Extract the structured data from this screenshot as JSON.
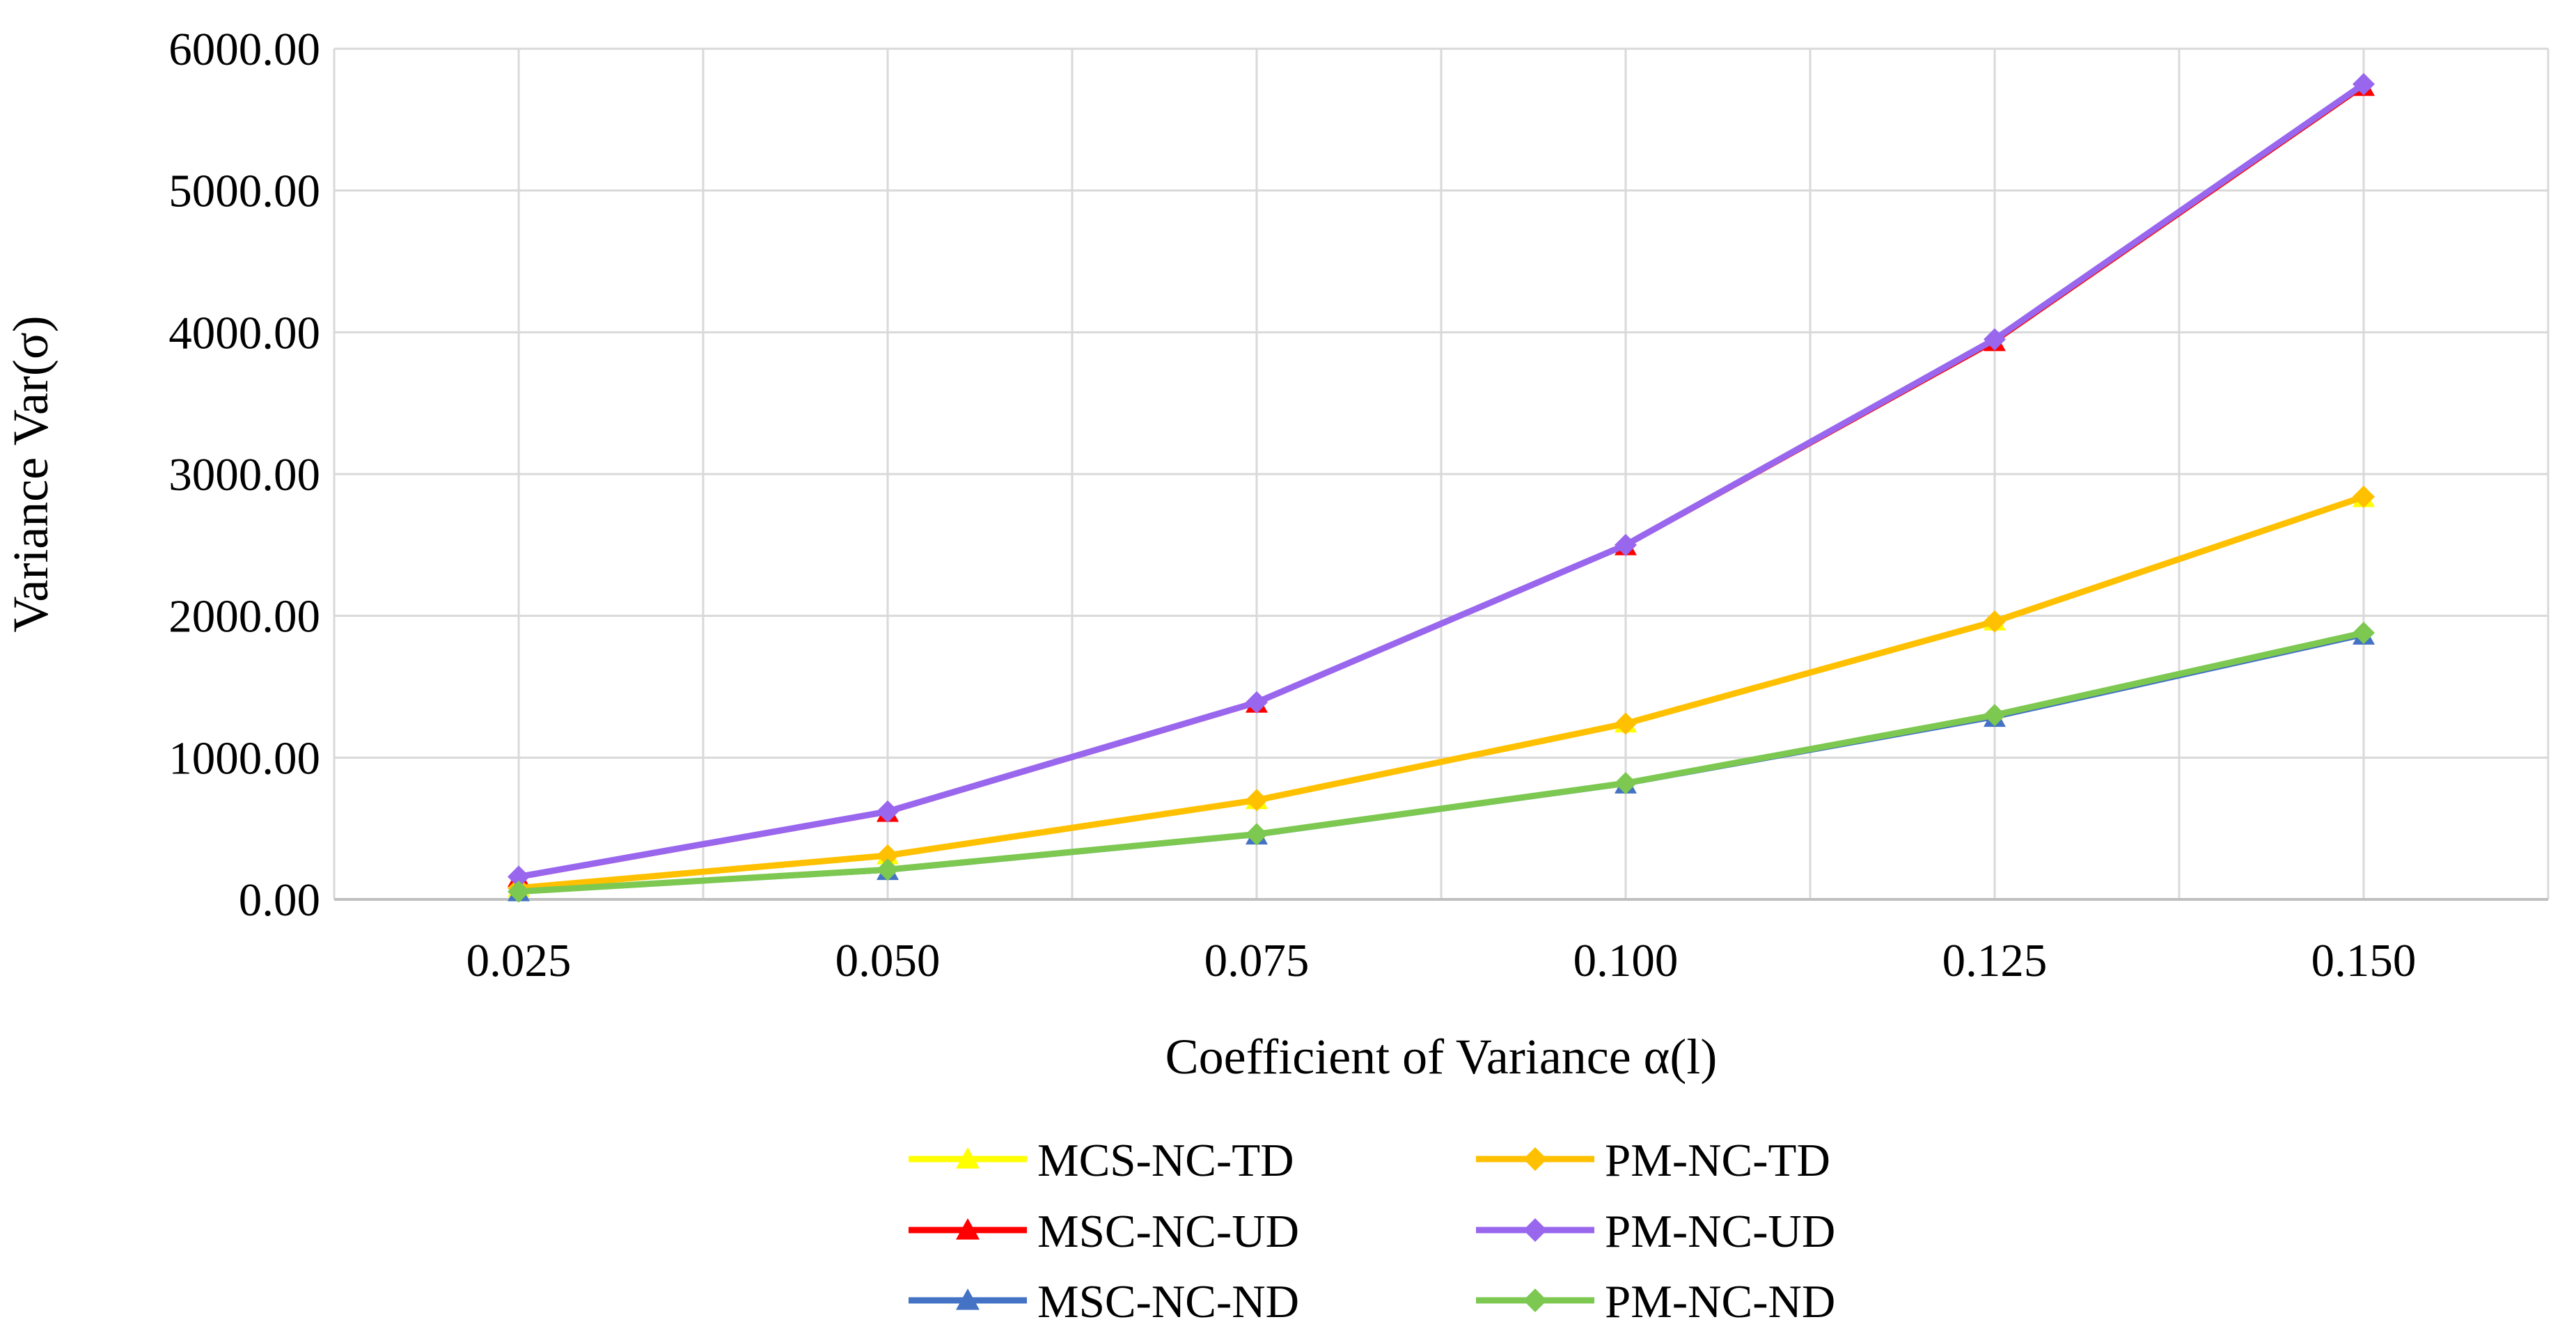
{
  "chart_data": {
    "type": "line",
    "title": "",
    "xlabel": "Coefficient of Variance α(l)",
    "ylabel": "Variance Var(σ)",
    "categories": [
      "0.025",
      "0.050",
      "0.075",
      "0.100",
      "0.125",
      "0.150"
    ],
    "x_minor_ticks": true,
    "ylim": [
      0,
      6000
    ],
    "yticks": [
      0,
      1000,
      2000,
      3000,
      4000,
      5000,
      6000
    ],
    "ytick_labels": [
      "0.00",
      "1000.00",
      "2000.00",
      "3000.00",
      "4000.00",
      "5000.00",
      "6000.00"
    ],
    "grid": true,
    "legend_position": "bottom",
    "series": [
      {
        "name": "MCS-NC-TD",
        "color": "#ffff00",
        "marker": "triangle",
        "values": [
          80,
          310,
          700,
          1240,
          1960,
          2830
        ]
      },
      {
        "name": "PM-NC-TD",
        "color": "#ffc000",
        "marker": "diamond",
        "values": [
          80,
          310,
          700,
          1240,
          1960,
          2840
        ]
      },
      {
        "name": "MSC-NC-UD",
        "color": "#ff0000",
        "marker": "triangle",
        "values": [
          150,
          610,
          1380,
          2490,
          3930,
          5730
        ]
      },
      {
        "name": "PM-NC-UD",
        "color": "#9966ee",
        "marker": "diamond",
        "values": [
          160,
          620,
          1390,
          2500,
          3950,
          5750
        ]
      },
      {
        "name": "MSC-NC-ND",
        "color": "#4472c4",
        "marker": "triangle",
        "values": [
          50,
          200,
          450,
          810,
          1280,
          1860
        ]
      },
      {
        "name": "PM-NC-ND",
        "color": "#7cc850",
        "marker": "diamond",
        "values": [
          55,
          210,
          460,
          820,
          1300,
          1880
        ]
      }
    ],
    "legend_order": [
      0,
      1,
      2,
      3,
      4,
      5
    ]
  }
}
